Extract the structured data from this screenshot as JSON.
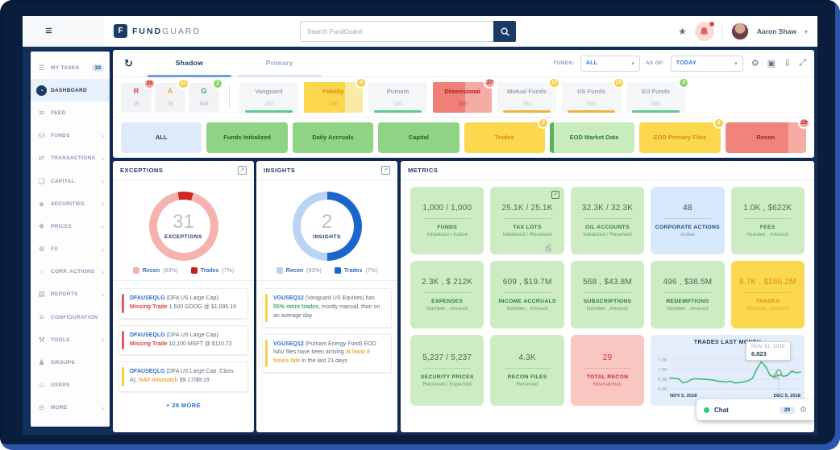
{
  "topbar": {
    "menu_icon": "≡",
    "logo_letter": "F",
    "brand_bold": "FUND",
    "brand_light": "GUARD",
    "search_placeholder": "Search FundGuard",
    "star_icon": "★",
    "user_name": "Aaron Shaw",
    "user_menu_chevron": "▾"
  },
  "sidebar": {
    "items": [
      {
        "name": "sidebar-item-my-tasks",
        "label": "MY TASKS",
        "icon_name": "tasks-icon",
        "icon_glyph": "☰",
        "badge": "33"
      },
      {
        "name": "sidebar-item-dashboard",
        "label": "DASHBOARD",
        "icon_name": "dashboard-icon",
        "icon_glyph": "◔",
        "state": "active"
      },
      {
        "name": "sidebar-item-feed",
        "label": "FEED",
        "icon_name": "feed-icon",
        "icon_glyph": "≋"
      },
      {
        "name": "sidebar-item-funds",
        "label": "FUNDS",
        "icon_name": "funds-icon",
        "icon_glyph": "⛁",
        "chevron": "›"
      },
      {
        "name": "sidebar-item-transactions",
        "label": "TRANSACTIONS",
        "icon_name": "transactions-icon",
        "icon_glyph": "⇄",
        "chevron": "›"
      },
      {
        "name": "sidebar-item-capital",
        "label": "CAPITAL",
        "icon_name": "capital-icon",
        "icon_glyph": "❏",
        "chevron": "›"
      },
      {
        "name": "sidebar-item-securities",
        "label": "SECURITIES",
        "icon_name": "securities-icon",
        "icon_glyph": "◈",
        "chevron": "›"
      },
      {
        "name": "sidebar-item-prices",
        "label": "PRICES",
        "icon_name": "prices-icon",
        "icon_glyph": "❖",
        "chevron": "›"
      },
      {
        "name": "sidebar-item-fx",
        "label": "FX",
        "icon_name": "fx-icon",
        "icon_glyph": "⊕",
        "chevron": "›"
      },
      {
        "name": "sidebar-item-corp-actions",
        "label": "CORP. ACTIONS",
        "icon_name": "corp-actions-icon",
        "icon_glyph": "⌂",
        "chevron": "›"
      },
      {
        "name": "sidebar-item-reports",
        "label": "REPORTS",
        "icon_name": "reports-icon",
        "icon_glyph": "▤",
        "chevron": "›"
      },
      {
        "name": "sidebar-item-configuration",
        "label": "CONFIGURATION",
        "icon_name": "configuration-icon",
        "icon_glyph": "≡"
      },
      {
        "name": "sidebar-item-tools",
        "label": "TOOLS",
        "icon_name": "tools-icon",
        "icon_glyph": "⚒",
        "chevron": "›"
      },
      {
        "name": "sidebar-item-groups",
        "label": "GROUPS",
        "icon_name": "groups-icon",
        "icon_glyph": "♟"
      },
      {
        "name": "sidebar-item-users",
        "label": "USERS",
        "icon_name": "users-icon",
        "icon_glyph": "☺"
      },
      {
        "name": "sidebar-item-more",
        "label": "MORE",
        "icon_name": "more-icon",
        "icon_glyph": "⊖",
        "chevron": "›"
      }
    ]
  },
  "toolbar": {
    "refresh_icon": "↻",
    "tabs": [
      "Shadow",
      "Primary"
    ],
    "funds_label": "FUNDS:",
    "funds_value": "ALL",
    "asof_label": "AS OF:",
    "asof_value": "TODAY",
    "select_chevron": "▾",
    "gear_icon": "⚙",
    "save_icon": "▣",
    "download_icon": "⇩",
    "fullscreen_icon": "⤢"
  },
  "status_chips": [
    {
      "name": "fund-status-chip-r",
      "letter": "R",
      "letter_style": "red",
      "count": "25",
      "badge": "20",
      "badge_style": "red"
    },
    {
      "name": "fund-status-chip-a",
      "letter": "A",
      "letter_style": "orange",
      "count": "75",
      "badge": "11",
      "badge_style": "yellow"
    },
    {
      "name": "fund-status-chip-g",
      "letter": "G",
      "letter_style": "green",
      "count": "900",
      "badge": "1",
      "badge_style": "green"
    }
  ],
  "fund_chips": [
    {
      "name": "fund-chip-vanguard",
      "label": "Vanguard",
      "count": "150",
      "underline": "green"
    },
    {
      "name": "fund-chip-fidelity",
      "label": "Fidelity",
      "count": "130",
      "fill": "yellow",
      "badge": "6",
      "badge_style": "yellow"
    },
    {
      "name": "fund-chip-putnam",
      "label": "Putnam",
      "count": "100",
      "underline": "green"
    },
    {
      "name": "fund-chip-dimensional",
      "label": "Dimensional",
      "count": "200",
      "fill": "red",
      "badge": "17",
      "badge_style": "red"
    },
    {
      "name": "fund-chip-mutual-funds",
      "label": "Mutual Funds",
      "count": "750",
      "underline": "orange",
      "badge": "15",
      "badge_style": "yellow"
    },
    {
      "name": "fund-chip-us-funds",
      "label": "US Funds",
      "count": "900",
      "underline": "orange",
      "badge": "29",
      "badge_style": "yellow"
    },
    {
      "name": "fund-chip-eu-funds",
      "label": "EU Funds",
      "count": "900",
      "underline": "green",
      "badge": "3",
      "badge_style": "green"
    }
  ],
  "filter_buttons": [
    {
      "name": "filter-all",
      "label": "ALL",
      "style": "blue"
    },
    {
      "name": "filter-funds-initialized",
      "label": "Funds Initialized",
      "style": "green"
    },
    {
      "name": "filter-daily-accruals",
      "label": "Daily Accruals",
      "style": "green"
    },
    {
      "name": "filter-capital",
      "label": "Capital",
      "style": "green"
    },
    {
      "name": "filter-trades",
      "label": "Trades",
      "style": "yellow",
      "badge": "2",
      "badge_style": "yellow"
    },
    {
      "name": "filter-eod-market-data",
      "label": "EOD Market Data",
      "style": "greenlight"
    },
    {
      "name": "filter-eod-primary-files",
      "label": "EOD Primary Files",
      "style": "yellow",
      "badge": "2",
      "badge_style": "yellow"
    },
    {
      "name": "filter-recon",
      "label": "Recon",
      "style": "red",
      "badge": "29",
      "badge_style": "red"
    }
  ],
  "exceptions": {
    "title": "EXCEPTIONS",
    "count": "31",
    "center_label": "EXCEPTIONS",
    "legend": [
      {
        "name": "Recon",
        "pct": "(93%)"
      },
      {
        "name": "Trades",
        "pct": "(7%)"
      }
    ],
    "items": [
      {
        "bar": "red",
        "code": "DFAUSEQLG",
        "t1": " (DFA US Large Cap), ",
        "alert": "Missing Trade",
        "alert_color": "red",
        "t2": " 1,500 GOOG @ $1,095.19"
      },
      {
        "bar": "red",
        "code": "DFAUSEQLG",
        "t1": " (DFA US Large Cap), ",
        "alert": "Missing Trade",
        "alert_color": "red",
        "t2": " 10,100 MSFT @ $110.72"
      },
      {
        "bar": "yellow",
        "code": "DFAUSEQLG",
        "t1": " (DFA US Large Cap, Class A), ",
        "alert": "NAV mismatch",
        "alert_color": "yellow",
        "t2": " $9.17/$9.19"
      }
    ],
    "more": "+ 28 MORE"
  },
  "insights": {
    "title": "INSIGHTS",
    "count": "2",
    "center_label": "INSIGHTS",
    "legend": [
      {
        "name": "Recon",
        "pct": "(93%)"
      },
      {
        "name": "Trades",
        "pct": "(7%)"
      }
    ],
    "items": [
      {
        "bar": "yellow",
        "code": "VGUSEQ12",
        "t1": " (Vanguard US Equities) has ",
        "hl": "55% more trades",
        "hl_color": "green",
        "t2": ", mostly manual, than on an average day"
      },
      {
        "bar": "yellow",
        "code": "VGUSEQ12",
        "t1": " (Putnam Energy Fund) EOD NAV files have been arriving ",
        "hl": "at least 3 hours late",
        "hl_color": "orange",
        "t2": " in the last 21 days"
      }
    ]
  },
  "metrics": {
    "title": "METRICS",
    "cards": [
      {
        "name": "metric-funds",
        "value": "1,000 / 1,000",
        "title": "FUNDS",
        "sub": "Initialized / Active",
        "style": "green"
      },
      {
        "name": "metric-tax-lots",
        "value": "25.1K / 25.1K",
        "title": "TAX LOTS",
        "sub": "Initialized / Received",
        "style": "green",
        "ext": "↗",
        "cursor": "☝"
      },
      {
        "name": "metric-gl-accounts",
        "value": "32.3K / 32.3K",
        "title": "G/L ACCOUNTS",
        "sub": "Initialized / Received",
        "style": "green"
      },
      {
        "name": "metric-corporate-actions",
        "value": "48",
        "title": "CORPORATE ACTIONS",
        "sub": "Active",
        "style": "blue"
      },
      {
        "name": "metric-fees",
        "value": "1.0K , $622K",
        "title": "FEES",
        "sub": "Number , Amount",
        "style": "green"
      },
      {
        "name": "metric-expenses",
        "value": "2.3K , $ 212K",
        "title": "EXPENSES",
        "sub": "Number , Amount",
        "style": "green"
      },
      {
        "name": "metric-income-accruals",
        "value": "609 , $19.7M",
        "title": "INCOME ACCRUALS",
        "sub": "Number , Amount",
        "style": "green"
      },
      {
        "name": "metric-subscriptions",
        "value": "568 , $43.8M",
        "title": "SUBSCRIPTIONS",
        "sub": "Number , Amount",
        "style": "green"
      },
      {
        "name": "metric-redemptions",
        "value": "496 , $38.5M",
        "title": "REDEMPTIONS",
        "sub": "Number , Amount",
        "style": "green"
      },
      {
        "name": "metric-trades",
        "value": "6.7K , $186.2M",
        "title": "TRADES",
        "sub": "Number , Amount",
        "style": "yellow"
      },
      {
        "name": "metric-security-prices",
        "value": "5,237 / 5,237",
        "title": "SECURITY PRICES",
        "sub": "Recieved / Expected",
        "style": "green"
      },
      {
        "name": "metric-recon-files",
        "value": "4.3K",
        "title": "RECON FILES",
        "sub": "Received",
        "style": "green"
      },
      {
        "name": "metric-total-recon",
        "value": "29",
        "title": "TOTAL RECON",
        "sub": "Mismatches",
        "style": "red"
      }
    ],
    "chart": {
      "title": "TRADES LAST MONTH",
      "y_ticks": [
        "7.5K",
        "7.0K",
        "6.5K",
        "6.0K"
      ],
      "x_start": "NOV 5, 2018",
      "x_end": "DEC 5, 2018",
      "tooltip_date": "NOV 31, 2018",
      "tooltip_value": "6,823"
    }
  },
  "chat": {
    "label": "Chat",
    "badge": "29",
    "gear_icon": "⚙"
  },
  "chart_data": {
    "type": "line",
    "title": "TRADES LAST MONTH",
    "ylabel": "Trades",
    "ylim": [
      6000,
      7500
    ],
    "y_ticks": [
      7500,
      7000,
      6500,
      6000
    ],
    "x_start": "NOV 5, 2018",
    "x_end": "DEC 5, 2018",
    "grid": true,
    "legend_position": "none",
    "values": [
      6550,
      6540,
      6520,
      6310,
      6360,
      6500,
      6520,
      6510,
      6500,
      6480,
      6450,
      6400,
      6380,
      6350,
      6390,
      6300,
      6330,
      6360,
      6420,
      6550,
      7050,
      7400,
      7150,
      6700,
      6600,
      6823,
      6640,
      6700,
      6920,
      6830,
      6870
    ],
    "highlight": {
      "index": 25,
      "date": "NOV 31, 2018",
      "value": 6823
    }
  }
}
